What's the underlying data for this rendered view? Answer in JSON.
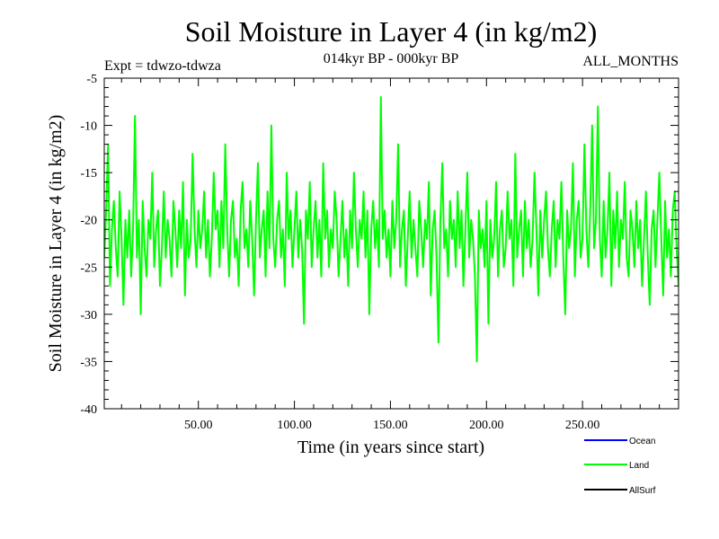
{
  "chart_data": {
    "type": "line",
    "title": "Soil Moisture in Layer 4 (in kg/m2)",
    "subtitle_left": "Expt = tdwzo-tdwza",
    "subtitle_center": "014kyr BP - 000kyr BP",
    "subtitle_right": "ALL_MONTHS",
    "xlabel": "Time (in years since start)",
    "ylabel": "Soil Moisture in Layer 4 (in kg/m2)",
    "xlim": [
      1,
      300
    ],
    "ylim": [
      -40,
      -5
    ],
    "x_ticks": [
      50,
      100,
      150,
      200,
      250
    ],
    "x_tick_labels": [
      "50.00",
      "100.00",
      "150.00",
      "200.00",
      "250.00"
    ],
    "y_ticks": [
      -40,
      -35,
      -30,
      -25,
      -20,
      -15,
      -10,
      -5
    ],
    "y_tick_labels": [
      "-40",
      "-35",
      "-30",
      "-25",
      "-20",
      "-15",
      "-10",
      "-5"
    ],
    "grid": false,
    "legend_position": "bottom-right",
    "series": [
      {
        "name": "Ocean",
        "color": "#0000ff",
        "values": []
      },
      {
        "name": "Land",
        "color": "#00ff00",
        "x_start": 1,
        "x_step": 1,
        "values": [
          -24,
          -19,
          -12,
          -27,
          -21,
          -18,
          -23,
          -26,
          -17,
          -22,
          -29,
          -20,
          -24,
          -19,
          -26,
          -21,
          -9,
          -24,
          -20,
          -30,
          -18,
          -23,
          -26,
          -20,
          -22,
          -15,
          -25,
          -21,
          -19,
          -27,
          -23,
          -17,
          -24,
          -20,
          -22,
          -26,
          -18,
          -21,
          -25,
          -19,
          -23,
          -16,
          -28,
          -20,
          -24,
          -22,
          -13,
          -21,
          -25,
          -19,
          -23,
          -21,
          -17,
          -24,
          -20,
          -26,
          -22,
          -15,
          -21,
          -19,
          -25,
          -18,
          -23,
          -12,
          -21,
          -26,
          -20,
          -18,
          -24,
          -22,
          -27,
          -19,
          -16,
          -23,
          -21,
          -25,
          -18,
          -22,
          -28,
          -20,
          -14,
          -24,
          -21,
          -19,
          -26,
          -17,
          -23,
          -10,
          -22,
          -25,
          -20,
          -18,
          -24,
          -21,
          -27,
          -15,
          -22,
          -19,
          -25,
          -21,
          -17,
          -24,
          -20,
          -23,
          -31,
          -19,
          -22,
          -16,
          -25,
          -21,
          -18,
          -24,
          -20,
          -26,
          -14,
          -22,
          -19,
          -25,
          -21,
          -23,
          -17,
          -20,
          -26,
          -22,
          -18,
          -24,
          -21,
          -27,
          -19,
          -23,
          -15,
          -21,
          -25,
          -20,
          -22,
          -17,
          -24,
          -19,
          -30,
          -21,
          -18,
          -23,
          -20,
          -25,
          -7,
          -22,
          -19,
          -24,
          -21,
          -26,
          -18,
          -23,
          -20,
          -12,
          -25,
          -21,
          -19,
          -27,
          -22,
          -17,
          -24,
          -20,
          -23,
          -26,
          -18,
          -21,
          -25,
          -20,
          -22,
          -16,
          -28,
          -21,
          -19,
          -24,
          -33,
          -20,
          -14,
          -23,
          -21,
          -26,
          -18,
          -22,
          -20,
          -25,
          -17,
          -23,
          -19,
          -27,
          -21,
          -15,
          -24,
          -20,
          -22,
          -26,
          -35,
          -19,
          -23,
          -21,
          -25,
          -18,
          -31,
          -20,
          -24,
          -22,
          -16,
          -26,
          -21,
          -19,
          -25,
          -23,
          -17,
          -22,
          -20,
          -27,
          -13,
          -24,
          -21,
          -19,
          -26,
          -18,
          -23,
          -20,
          -25,
          -22,
          -15,
          -21,
          -28,
          -19,
          -24,
          -20,
          -17,
          -23,
          -26,
          -21,
          -18,
          -25,
          -20,
          -22,
          -16,
          -24,
          -30,
          -19,
          -23,
          -21,
          -14,
          -26,
          -20,
          -18,
          -24,
          -22,
          -12,
          -21,
          -25,
          -19,
          -10,
          -23,
          -20,
          -8,
          -22,
          -26,
          -18,
          -24,
          -21,
          -15,
          -27,
          -19,
          -23,
          -17,
          -25,
          -20,
          -22,
          -16,
          -24,
          -26,
          -19,
          -21,
          -25,
          -18,
          -23,
          -20,
          -27,
          -22,
          -17,
          -24,
          -29,
          -21,
          -19,
          -25,
          -20,
          -15,
          -22,
          -28,
          -18,
          -24,
          -21,
          -26,
          -19,
          -17,
          -23,
          -27,
          -20
        ]
      },
      {
        "name": "AllSurf",
        "color": "#000000",
        "values": []
      }
    ]
  }
}
